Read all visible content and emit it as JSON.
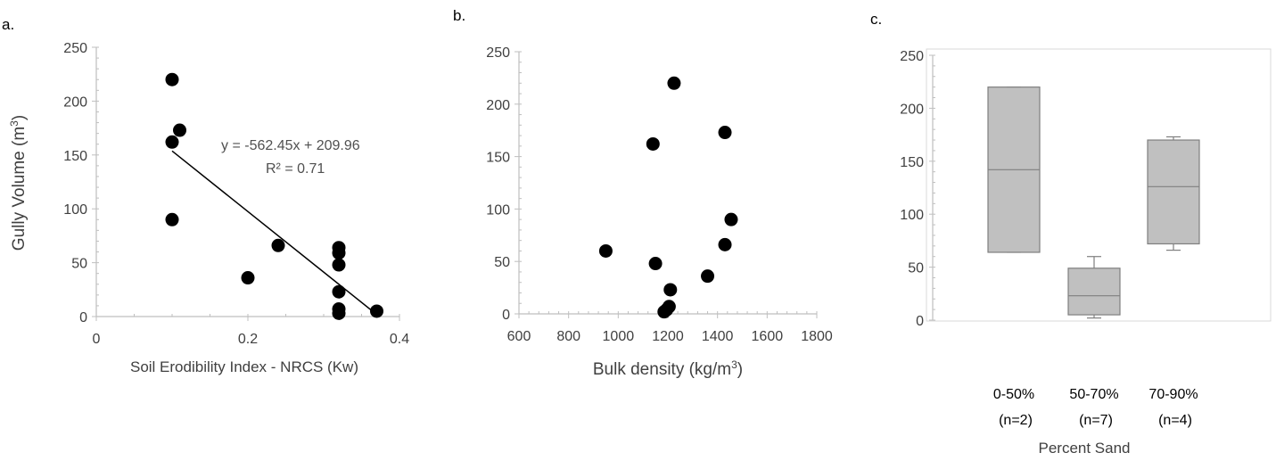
{
  "chart_data": [
    {
      "type": "scatter",
      "panel_label": "a.",
      "xlabel": "Soil Erodibility Index - NRCS (Kw)",
      "ylabel": "Gully Volume (m³)",
      "ylabel_main": "Gully Volume (m",
      "ylabel_sup": "3",
      "ylabel_end": ")",
      "xlim": [
        0,
        0.4
      ],
      "ylim": [
        0,
        250
      ],
      "xticks": [
        "0",
        "0.2",
        "0.4"
      ],
      "yticks": [
        "0",
        "50",
        "100",
        "150",
        "200",
        "250"
      ],
      "points": [
        {
          "x": 0.1,
          "y": 220
        },
        {
          "x": 0.1,
          "y": 162
        },
        {
          "x": 0.11,
          "y": 173
        },
        {
          "x": 0.1,
          "y": 90
        },
        {
          "x": 0.2,
          "y": 36
        },
        {
          "x": 0.24,
          "y": 66
        },
        {
          "x": 0.32,
          "y": 64
        },
        {
          "x": 0.32,
          "y": 59
        },
        {
          "x": 0.32,
          "y": 48
        },
        {
          "x": 0.32,
          "y": 23
        },
        {
          "x": 0.32,
          "y": 7
        },
        {
          "x": 0.32,
          "y": 3
        },
        {
          "x": 0.37,
          "y": 5
        }
      ],
      "trendline": {
        "slope": -562.45,
        "intercept": 209.96,
        "x_range": [
          0.1,
          0.37
        ]
      },
      "equation": "y = -562.45x + 209.96",
      "r2": "R² = 0.71",
      "grid": false
    },
    {
      "type": "scatter",
      "panel_label": "b.",
      "xlabel": "Bulk density (kg/m³)",
      "xlabel_main": "Bulk density (kg/m",
      "xlabel_sup": "3",
      "xlabel_end": ")",
      "xlim": [
        600,
        1800
      ],
      "ylim": [
        0,
        250
      ],
      "xticks": [
        "600",
        "800",
        "1000",
        "1200",
        "1400",
        "1600",
        "1800"
      ],
      "yticks": [
        "0",
        "50",
        "100",
        "150",
        "200",
        "250"
      ],
      "points": [
        {
          "x": 1225,
          "y": 220
        },
        {
          "x": 1140,
          "y": 162
        },
        {
          "x": 1430,
          "y": 173
        },
        {
          "x": 1455,
          "y": 90
        },
        {
          "x": 950,
          "y": 60
        },
        {
          "x": 1150,
          "y": 48
        },
        {
          "x": 1430,
          "y": 66
        },
        {
          "x": 1360,
          "y": 36
        },
        {
          "x": 1210,
          "y": 23
        },
        {
          "x": 1205,
          "y": 7
        },
        {
          "x": 1195,
          "y": 4
        },
        {
          "x": 1185,
          "y": 2
        }
      ],
      "grid": false
    },
    {
      "type": "box",
      "panel_label": "c.",
      "xlabel": "Percent Sand",
      "ylim": [
        0,
        250
      ],
      "yticks": [
        "0",
        "50",
        "100",
        "150",
        "200",
        "250"
      ],
      "categories": [
        {
          "label": "0-50%",
          "n": "(n=2)",
          "min": 64,
          "q1": 64,
          "median": 142,
          "q3": 220,
          "max": 220
        },
        {
          "label": "50-70%",
          "n": "(n=7)",
          "min": 2,
          "q1": 5,
          "median": 23,
          "q3": 49,
          "max": 60
        },
        {
          "label": "70-90%",
          "n": "(n=4)",
          "min": 66,
          "q1": 72,
          "median": 126,
          "q3": 170,
          "max": 173
        }
      ],
      "box_color": "#c0c0c0",
      "grid": false
    }
  ]
}
